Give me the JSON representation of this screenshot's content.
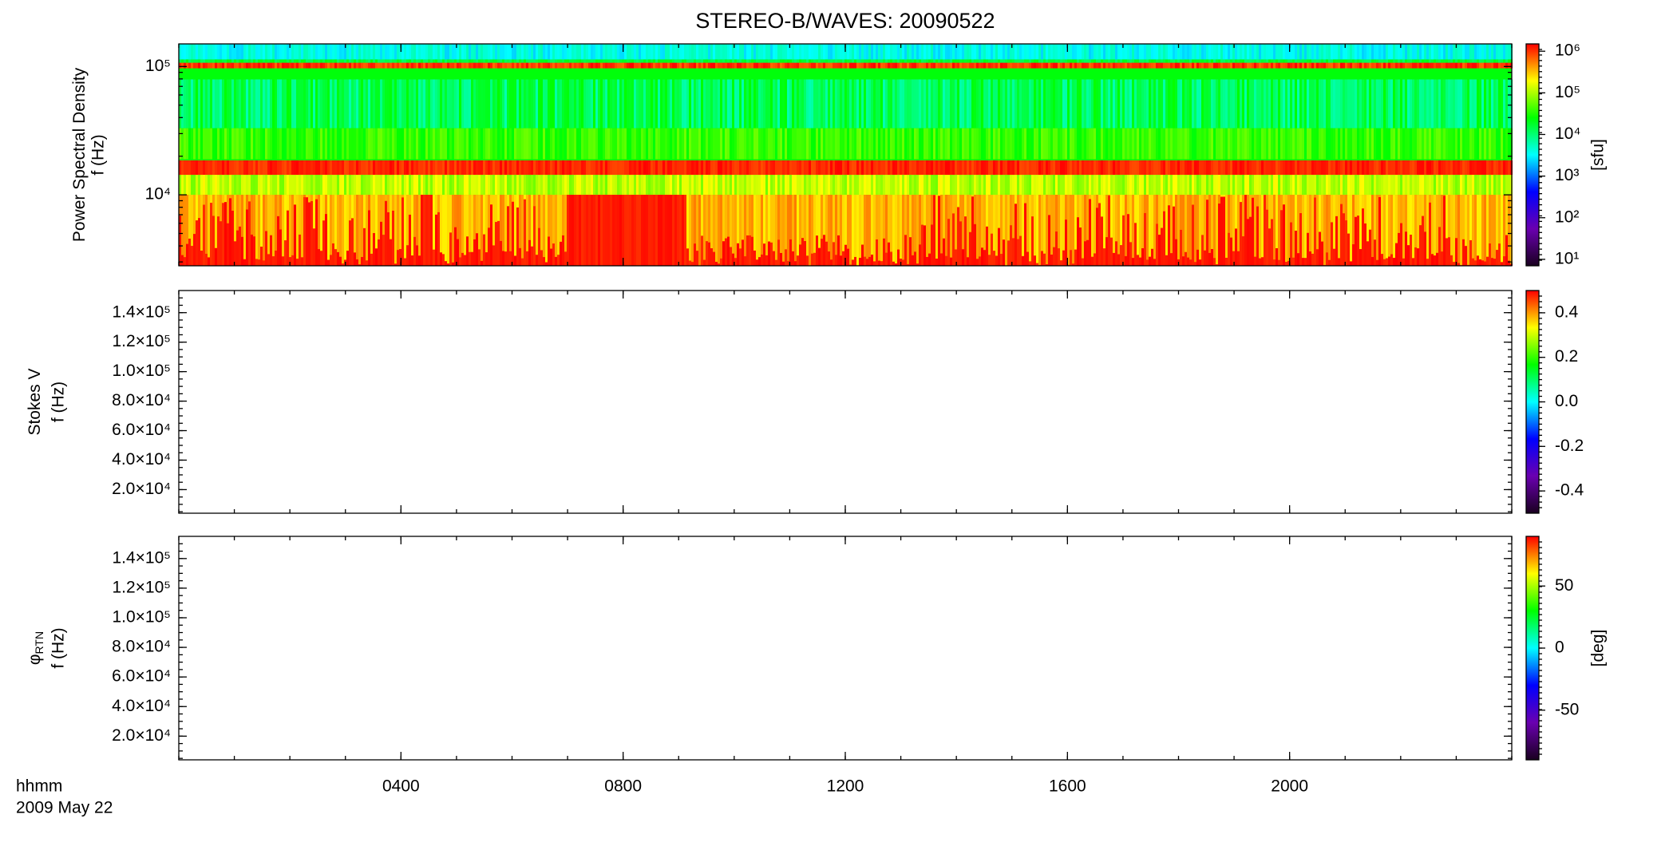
{
  "chart_data": [
    {
      "type": "spectrogram",
      "title": "STEREO-B/WAVES: 20090522",
      "ylabel": [
        "Power Spectral Density",
        "f (Hz)"
      ],
      "ylog": true,
      "ylim": [
        2800,
        150000
      ],
      "yticks": [
        {
          "value": 10000,
          "label": "10⁴"
        },
        {
          "value": 100000,
          "label": "10⁵"
        }
      ],
      "clog": true,
      "clim": [
        7,
        1500000
      ],
      "cticks": [
        {
          "value": 10,
          "label": "10¹"
        },
        {
          "value": 100,
          "label": "10²"
        },
        {
          "value": 1000,
          "label": "10³"
        },
        {
          "value": 10000,
          "label": "10⁴"
        },
        {
          "value": 100000,
          "label": "10⁵"
        },
        {
          "value": 1000000,
          "label": "10⁶"
        }
      ],
      "clabel": "[sfu]",
      "colormap": [
        "#1a0020",
        "#6a00b0",
        "#0000ff",
        "#00ffff",
        "#00ff00",
        "#ffff00",
        "#ff0000"
      ]
    },
    {
      "type": "spectrogram",
      "ylabel": [
        "Stokes V",
        "f (Hz)"
      ],
      "ylog": false,
      "ylim": [
        4000,
        155000
      ],
      "yticks": [
        {
          "value": 20000,
          "label": "2.0×10⁴"
        },
        {
          "value": 40000,
          "label": "4.0×10⁴"
        },
        {
          "value": 60000,
          "label": "6.0×10⁴"
        },
        {
          "value": 80000,
          "label": "8.0×10⁴"
        },
        {
          "value": 100000,
          "label": "1.0×10⁵"
        },
        {
          "value": 120000,
          "label": "1.2×10⁵"
        },
        {
          "value": 140000,
          "label": "1.4×10⁵"
        }
      ],
      "clog": false,
      "clim": [
        -0.5,
        0.5
      ],
      "cticks": [
        {
          "value": -0.4,
          "label": "-0.4"
        },
        {
          "value": -0.2,
          "label": "-0.2"
        },
        {
          "value": 0,
          "label": "0.0"
        },
        {
          "value": 0.2,
          "label": "0.2"
        },
        {
          "value": 0.4,
          "label": "0.4"
        }
      ],
      "colormap": [
        "#1a0020",
        "#6a00b0",
        "#0000ff",
        "#00ffff",
        "#00ff00",
        "#ffff00",
        "#ff0000"
      ]
    },
    {
      "type": "spectrogram",
      "ylabel": [
        "φ",
        "f (Hz)"
      ],
      "ylabel_sub": "RTN",
      "ylog": false,
      "ylim": [
        4000,
        155000
      ],
      "yticks": [
        {
          "value": 20000,
          "label": "2.0×10⁴"
        },
        {
          "value": 40000,
          "label": "4.0×10⁴"
        },
        {
          "value": 60000,
          "label": "6.0×10⁴"
        },
        {
          "value": 80000,
          "label": "8.0×10⁴"
        },
        {
          "value": 100000,
          "label": "1.0×10⁵"
        },
        {
          "value": 120000,
          "label": "1.2×10⁵"
        },
        {
          "value": 140000,
          "label": "1.4×10⁵"
        }
      ],
      "clog": false,
      "clim": [
        -90,
        90
      ],
      "cticks": [
        -50,
        0,
        50
      ],
      "clabel": "[deg]",
      "colormap": [
        "#1a0020",
        "#6a00b0",
        "#0000ff",
        "#00ffff",
        "#00ff00",
        "#ffff00",
        "#ff0000"
      ],
      "xlabel": [
        "hhmm",
        "2009 May 22"
      ],
      "xlim": [
        0,
        24
      ],
      "xticks": [
        {
          "value": 4,
          "label": "0400"
        },
        {
          "value": 8,
          "label": "0800"
        },
        {
          "value": 12,
          "label": "1200"
        },
        {
          "value": 16,
          "label": "1600"
        },
        {
          "value": 20,
          "label": "2000"
        }
      ]
    }
  ]
}
